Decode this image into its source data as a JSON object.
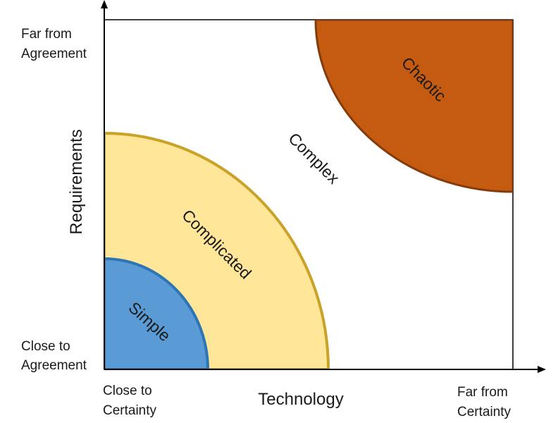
{
  "axes": {
    "x_title": "Technology",
    "y_title": "Requirements",
    "x_low": [
      "Close to",
      "Certainty"
    ],
    "x_high": [
      "Far from",
      "Certainty"
    ],
    "y_low": [
      "Close to",
      "Agreement"
    ],
    "y_high": [
      "Far from",
      "Agreement"
    ]
  },
  "zones": {
    "simple": "Simple",
    "complicated": "Complicated",
    "complex": "Complex",
    "chaotic": "Chaotic"
  },
  "colors": {
    "simple_fill": "#5b9bd5",
    "simple_stroke": "#2e75b6",
    "complicated_fill": "#ffe699",
    "complicated_stroke": "#c9a227",
    "chaotic_fill": "#c55a11",
    "chaotic_stroke": "#843c0c",
    "axis": "#000000"
  }
}
